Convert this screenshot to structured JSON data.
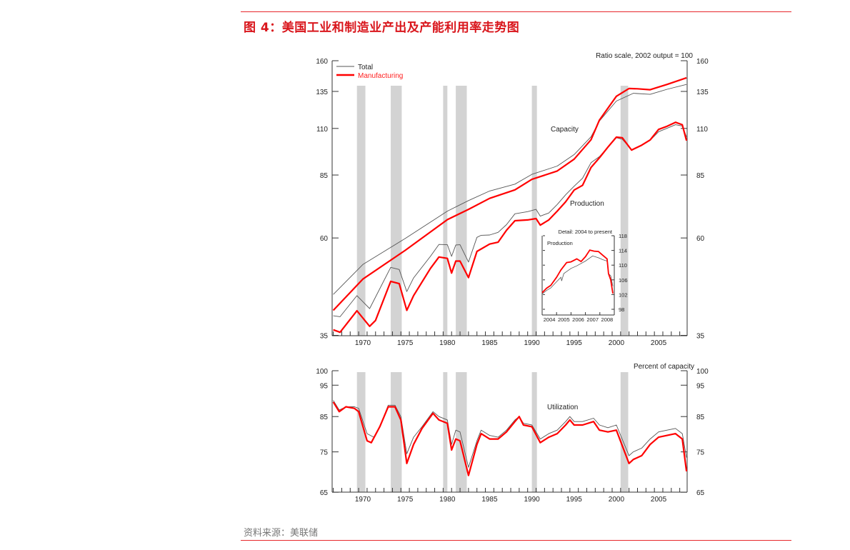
{
  "title": "图 4：美国工业和制造业产出及产能利用率走势图",
  "source": "资料来源：美联储",
  "colors": {
    "total": "#555555",
    "manufacturing": "#ff0000",
    "recession": "#d3d3d3",
    "accent": "#e8282c"
  },
  "legend": {
    "total": "Total",
    "manufacturing": "Manufacturing"
  },
  "chart_data": [
    {
      "type": "line",
      "scale": "log",
      "note": "Ratio scale, 2002 output = 100",
      "ylim": [
        35,
        160
      ],
      "yticks": [
        35,
        60,
        85,
        110,
        135,
        160
      ],
      "xlim": [
        1966.4,
        2008.4
      ],
      "xticks": [
        1970,
        1975,
        1980,
        1985,
        1990,
        1995,
        2000,
        2005
      ],
      "annotations": {
        "capacity": "Capacity",
        "production": "Production"
      },
      "shaded_periods": [
        [
          1969.3,
          1970.3
        ],
        [
          1973.3,
          1974.6
        ],
        [
          1979.5,
          1980.0
        ],
        [
          1981.0,
          1982.3
        ],
        [
          1990.0,
          1990.6
        ],
        [
          2000.5,
          2001.4
        ]
      ],
      "series": [
        {
          "name": "Total",
          "group": "Capacity",
          "color": "#555555",
          "x": [
            1966.5,
            1970,
            1975,
            1980,
            1982.5,
            1985,
            1988,
            1990,
            1993,
            1995,
            1997,
            1998,
            2000,
            2002,
            2004,
            2006,
            2008.3
          ],
          "y": [
            43.9,
            51.8,
            59.8,
            69.6,
            73.8,
            77.8,
            80.8,
            85.3,
            89.3,
            95.2,
            105,
            114.6,
            128,
            133.6,
            132.8,
            136.6,
            140.3
          ]
        },
        {
          "name": "Manufacturing",
          "group": "Capacity",
          "color": "#ff0000",
          "x": [
            1966.5,
            1970,
            1975,
            1980,
            1982.5,
            1985,
            1988,
            1990,
            1993,
            1995,
            1997,
            1998,
            2000,
            2001.5,
            2002.5,
            2004,
            2006,
            2008.3
          ],
          "y": [
            40.2,
            47.8,
            56,
            66.4,
            70.3,
            74.7,
            78.3,
            83,
            86.9,
            92.8,
            103.3,
            115.2,
            131.4,
            137.2,
            137,
            136.3,
            140.3,
            145.6
          ]
        },
        {
          "name": "Total",
          "group": "Production",
          "color": "#555555",
          "x": [
            1966.5,
            1967.3,
            1969.3,
            1970.8,
            1973.3,
            1974.3,
            1975.2,
            1976,
            1978,
            1979,
            1980,
            1980.5,
            1981,
            1981.5,
            1982.5,
            1983.5,
            1984,
            1985,
            1986,
            1987,
            1988,
            1989.5,
            1990.5,
            1991,
            1992,
            1993,
            1994,
            1995,
            1996,
            1997,
            1998,
            1999,
            2000,
            2000.7,
            2001.8,
            2003,
            2004,
            2005,
            2006,
            2007,
            2007.8,
            2008.3
          ],
          "y": [
            39,
            38.8,
            43.6,
            40.6,
            51,
            50.4,
            44.6,
            48.1,
            54.2,
            57.9,
            57.8,
            54.2,
            57.7,
            57.8,
            52.5,
            60.2,
            60.9,
            61,
            61.9,
            64.6,
            68.6,
            69.4,
            70.3,
            67.7,
            68.9,
            72.2,
            76.2,
            79.9,
            83.5,
            91,
            94.1,
            99.2,
            104.5,
            103.6,
            97.8,
            100.3,
            103,
            108,
            110.1,
            112.3,
            111.5,
            105
          ]
        },
        {
          "name": "Manufacturing",
          "group": "Production",
          "color": "#ff0000",
          "x": [
            1966.5,
            1967.3,
            1969.3,
            1970.8,
            1971.5,
            1973.3,
            1974.3,
            1975.2,
            1976,
            1978,
            1979,
            1980,
            1980.5,
            1981,
            1981.5,
            1982.5,
            1983.5,
            1985,
            1986,
            1987,
            1988,
            1989.5,
            1990.5,
            1991,
            1992,
            1993,
            1994,
            1995,
            1996,
            1997,
            1998,
            1999,
            2000,
            2000.7,
            2001.8,
            2003,
            2004,
            2005,
            2006,
            2007,
            2007.8,
            2008.3
          ],
          "y": [
            36.1,
            35.6,
            40.1,
            36.8,
            38,
            47.2,
            46.6,
            40.2,
            43.6,
            50.7,
            54,
            53.6,
            49.4,
            52.8,
            52.8,
            48.2,
            55.7,
            58,
            58.6,
            62.6,
            66,
            66.3,
            66.8,
            64.4,
            66.3,
            69.6,
            73.3,
            78.2,
            80.3,
            88.6,
            93.5,
            99.2,
            104.8,
            104.5,
            97.6,
            100.3,
            103.2,
            109.4,
            111.3,
            113.8,
            112.3,
            102.8
          ]
        }
      ]
    },
    {
      "type": "line",
      "title": "Detail: 2004 to present",
      "label": "Production",
      "ylim": [
        98,
        118
      ],
      "yticks": [
        98,
        102,
        106,
        110,
        114,
        118
      ],
      "xlim": [
        2004,
        2009
      ],
      "xticks": [
        2004,
        2005,
        2006,
        2007,
        2008
      ],
      "series": [
        {
          "name": "Total",
          "color": "#555555",
          "x": [
            2004.0,
            2004.3,
            2004.6,
            2005.0,
            2005.3,
            2005.35,
            2005.5,
            2006.0,
            2006.4,
            2007.0,
            2007.5,
            2007.9,
            2008.2,
            2008.5,
            2008.6,
            2008.75,
            2008.9
          ],
          "y": [
            102.2,
            103.1,
            103.8,
            105.5,
            106.7,
            105.7,
            107.7,
            109.1,
            109.8,
            111.1,
            112.5,
            112,
            111.5,
            111.1,
            107.7,
            107.1,
            104.3
          ]
        },
        {
          "name": "Manufacturing",
          "color": "#ff0000",
          "x": [
            2004.0,
            2004.3,
            2004.6,
            2005.0,
            2005.3,
            2005.7,
            2006.0,
            2006.4,
            2006.7,
            2007.0,
            2007.3,
            2007.6,
            2007.9,
            2008.2,
            2008.5,
            2008.6,
            2008.75,
            2008.9
          ],
          "y": [
            102.5,
            103.7,
            104.5,
            106.7,
            108.7,
            110.7,
            110.9,
            111.7,
            111,
            112.3,
            114.1,
            113.8,
            113.7,
            112.7,
            111.7,
            107.7,
            106,
            102.3
          ]
        }
      ]
    },
    {
      "type": "line",
      "scale": "log",
      "note": "Percent of capacity",
      "label": "Utilization",
      "ylim": [
        65,
        100
      ],
      "yticks": [
        65,
        75,
        85,
        95,
        100
      ],
      "xlim": [
        1966.4,
        2008.4
      ],
      "xticks": [
        1970,
        1975,
        1980,
        1985,
        1990,
        1995,
        2000,
        2005
      ],
      "shaded_periods": [
        [
          1969.3,
          1970.3
        ],
        [
          1973.3,
          1974.6
        ],
        [
          1979.5,
          1980.0
        ],
        [
          1981.0,
          1982.3
        ],
        [
          1990.0,
          1990.6
        ],
        [
          2000.5,
          2001.4
        ]
      ],
      "series": [
        {
          "name": "Total",
          "color": "#555555",
          "x": [
            1966.5,
            1967.2,
            1968,
            1969,
            1969.5,
            1970.5,
            1971.3,
            1972,
            1973,
            1973.8,
            1974.5,
            1975.2,
            1976,
            1977,
            1978.3,
            1979,
            1980,
            1980.5,
            1981,
            1981.5,
            1982.5,
            1983.5,
            1984,
            1985,
            1986,
            1987,
            1988,
            1988.5,
            1989,
            1990,
            1991,
            1992,
            1993,
            1994,
            1994.5,
            1995,
            1996,
            1997.3,
            1998,
            1999,
            2000,
            2001.5,
            2002,
            2003,
            2004,
            2005,
            2006,
            2007,
            2007.8,
            2008.3
          ],
          "y": [
            90,
            87,
            88,
            88,
            87.5,
            80,
            79,
            82,
            88.5,
            88.5,
            85,
            74.5,
            79,
            82,
            86.5,
            85,
            84,
            77,
            81,
            80.5,
            71,
            78,
            81,
            79.5,
            79,
            81,
            84,
            85,
            83,
            82.5,
            78.5,
            80,
            81,
            83.5,
            85,
            83.5,
            83.5,
            84.5,
            82.5,
            81.7,
            82.5,
            74,
            75,
            76,
            78.5,
            80.5,
            81,
            81.5,
            80,
            73.5
          ]
        },
        {
          "name": "Manufacturing",
          "color": "#ff0000",
          "x": [
            1966.5,
            1967.2,
            1968,
            1969,
            1969.5,
            1970.5,
            1971,
            1972,
            1973,
            1973.8,
            1974.5,
            1975.2,
            1976,
            1977,
            1978.3,
            1979,
            1980,
            1980.5,
            1981,
            1981.5,
            1982.5,
            1983.5,
            1984,
            1985,
            1986,
            1987,
            1988,
            1988.5,
            1989,
            1990,
            1991,
            1992,
            1993,
            1994,
            1994.5,
            1995,
            1996,
            1997.3,
            1998,
            1999,
            2000,
            2001.5,
            2002,
            2003,
            2004,
            2005,
            2006,
            2007,
            2007.8,
            2008.3
          ],
          "y": [
            89.5,
            86.5,
            88,
            87.5,
            86.5,
            78,
            77.5,
            82,
            88,
            88,
            84,
            72,
            77,
            81.5,
            86,
            84,
            83,
            75.5,
            78.5,
            78,
            69,
            77,
            80,
            78.5,
            78.5,
            80.5,
            83.5,
            85,
            82.5,
            82,
            77.5,
            79,
            80,
            82.5,
            84,
            82.5,
            82.5,
            83.5,
            81,
            80.5,
            81,
            72,
            73,
            74,
            77,
            79,
            79.5,
            80,
            78.5,
            70
          ]
        }
      ]
    }
  ]
}
